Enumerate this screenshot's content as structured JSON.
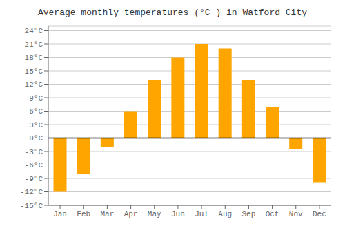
{
  "chart_data": {
    "type": "bar",
    "title": "Average monthly temperatures (°C ) in Watford City",
    "categories": [
      "Jan",
      "Feb",
      "Mar",
      "Apr",
      "May",
      "Jun",
      "Jul",
      "Aug",
      "Sep",
      "Oct",
      "Nov",
      "Dec"
    ],
    "values": [
      -12,
      -8,
      -2,
      6,
      13,
      18,
      21,
      20,
      13,
      7,
      -2.5,
      -10
    ],
    "color": "#FFA500",
    "ylim": [
      -15,
      25
    ],
    "yticks": [
      {
        "value": -15,
        "label": "-15°C"
      },
      {
        "value": -12,
        "label": "-12°C"
      },
      {
        "value": -9,
        "label": "-9°C"
      },
      {
        "value": -6,
        "label": "-6°C"
      },
      {
        "value": -3,
        "label": "-3°C"
      },
      {
        "value": 0,
        "label": "0°C"
      },
      {
        "value": 3,
        "label": "3°C"
      },
      {
        "value": 6,
        "label": "6°C"
      },
      {
        "value": 9,
        "label": "9°C"
      },
      {
        "value": 12,
        "label": "12°C"
      },
      {
        "value": 15,
        "label": "15°C"
      },
      {
        "value": 18,
        "label": "18°C"
      },
      {
        "value": 21,
        "label": "21°C"
      },
      {
        "value": 24,
        "label": "24°C"
      }
    ],
    "grid": true
  }
}
